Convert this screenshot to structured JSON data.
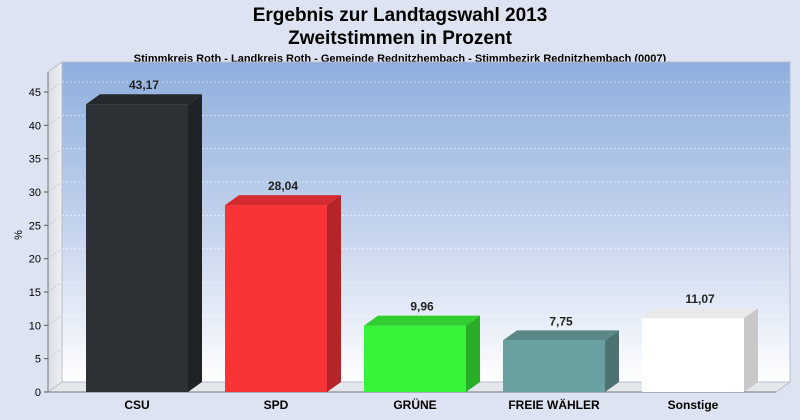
{
  "chart_data": {
    "type": "bar",
    "title": "Ergebnis zur Landtagswahl 2013",
    "subtitle": "Zweitstimmen in Prozent",
    "caption": "Stimmkreis Roth - Landkreis Roth - Gemeinde Rednitzhembach - Stimmbezirk Rednitzhembach (0007)",
    "ylabel": "%",
    "xlabel": "",
    "ylim": [
      0,
      48
    ],
    "yticks": [
      0,
      5,
      10,
      15,
      20,
      25,
      30,
      35,
      40,
      45
    ],
    "grid": true,
    "categories": [
      "CSU",
      "SPD",
      "GRÜNE",
      "FREIE WÄHLER",
      "Sonstige"
    ],
    "values": [
      43.17,
      28.04,
      9.96,
      7.75,
      11.07
    ],
    "value_labels": [
      "43,17",
      "28,04",
      "9,96",
      "7,75",
      "11,07"
    ],
    "colors": [
      "#2d3034",
      "#f93438",
      "#39f23a",
      "#6aa09f",
      "#ffffff"
    ]
  }
}
